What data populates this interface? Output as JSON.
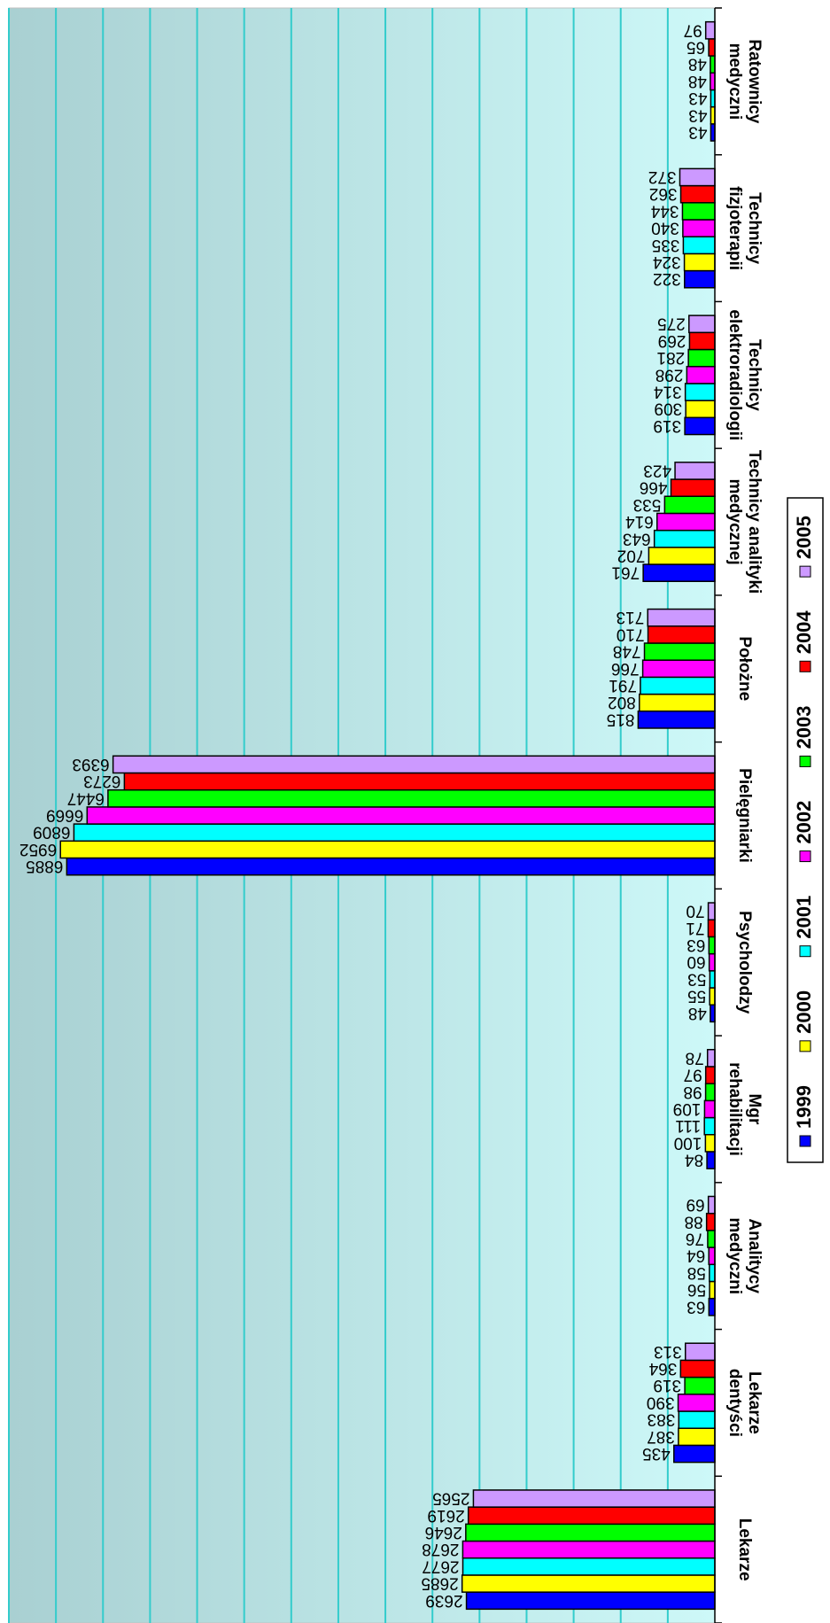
{
  "chart_data": {
    "type": "bar",
    "orientation": "horizontal",
    "rendered_rotated": "180deg",
    "categories": [
      "Lekarze",
      "Lekarze dentyści",
      "Analitycy medyczni",
      "Mgr rehabilitacji",
      "Psycholodzy",
      "Pielęgniarki",
      "Położne",
      "Technicy analityki medycznej",
      "Technicy elektroradiologii",
      "Technicy fizjoterapii",
      "Ratownicy medyczni"
    ],
    "series": [
      {
        "name": "1999",
        "color": "#0000ff",
        "values": [
          2639,
          435,
          63,
          84,
          48,
          6885,
          815,
          761,
          319,
          322,
          43
        ]
      },
      {
        "name": "2000",
        "color": "#ffff00",
        "values": [
          2685,
          387,
          56,
          100,
          55,
          6952,
          802,
          702,
          309,
          324,
          43
        ]
      },
      {
        "name": "2001",
        "color": "#00ffff",
        "values": [
          2677,
          383,
          58,
          111,
          53,
          6809,
          791,
          643,
          314,
          335,
          43
        ]
      },
      {
        "name": "2002",
        "color": "#ff00ff",
        "values": [
          2678,
          390,
          64,
          109,
          60,
          6669,
          766,
          614,
          298,
          340,
          48
        ]
      },
      {
        "name": "2003",
        "color": "#00ff00",
        "values": [
          2646,
          319,
          76,
          98,
          63,
          6447,
          748,
          533,
          281,
          344,
          48
        ]
      },
      {
        "name": "2004",
        "color": "#ff0000",
        "values": [
          2619,
          364,
          88,
          97,
          71,
          6273,
          710,
          466,
          269,
          362,
          65
        ]
      },
      {
        "name": "2005",
        "color": "#cc99ff",
        "values": [
          2565,
          313,
          69,
          78,
          70,
          6393,
          713,
          423,
          275,
          372,
          97
        ]
      }
    ],
    "xlim": [
      0,
      7500
    ],
    "grid": true,
    "legend_position": "bottom",
    "title": "",
    "xlabel": "",
    "ylabel": ""
  }
}
